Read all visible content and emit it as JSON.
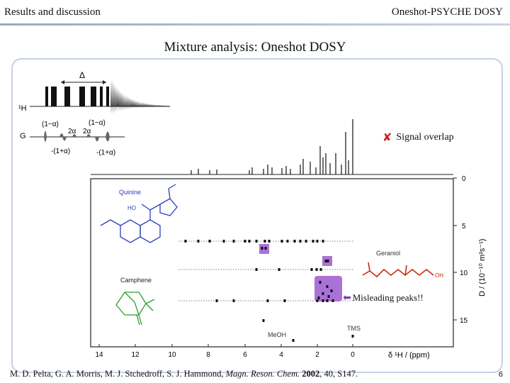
{
  "header": {
    "left": "Results and discussion",
    "right": "Oneshot-PSYCHE DOSY",
    "bar_color": "#9aa8c4"
  },
  "title": "Mixture analysis: Oneshot DOSY",
  "pulse_sequence": {
    "h_label": "¹H",
    "g_label": "G",
    "delta_label": "Δ",
    "labels": [
      "(1−α)",
      "2α",
      "2α",
      "(1−α)",
      "-(1+α)",
      "-(1+α)"
    ]
  },
  "spectrum": {
    "x_ticks": [
      "14",
      "12",
      "10",
      "8",
      "6",
      "4",
      "2",
      "0"
    ],
    "x_axis_label": "δ ¹H / (ppm)",
    "y_ticks": [
      "0",
      "5",
      "10",
      "15"
    ],
    "y_axis_label": "D / (10⁻¹⁰ m²s⁻¹)"
  },
  "compounds": {
    "quinine": "Quinine",
    "camphene": "Camphene",
    "geraniol": "Geraniol",
    "meoh": "MeOH",
    "tms": "TMS",
    "oh_label": "OH",
    "ho_label": "HO"
  },
  "annotations": {
    "signal_overlap": "Signal overlap",
    "misleading": "Misleading peaks!!"
  },
  "citation": {
    "authors": "M. D. Pelta, G. A. Morris, M. J. Stchedroff, S. J. Hammond, ",
    "journal": "Magn. Reson. Chem.",
    "year": "2002",
    "rest": ", 40, S147."
  },
  "slide_number": "6",
  "colors": {
    "quinine": "#2a3fbf",
    "camphene": "#2aa02a",
    "geraniol": "#cc2a10",
    "highlight": "#9b59d0",
    "cross": "#cc2222"
  }
}
